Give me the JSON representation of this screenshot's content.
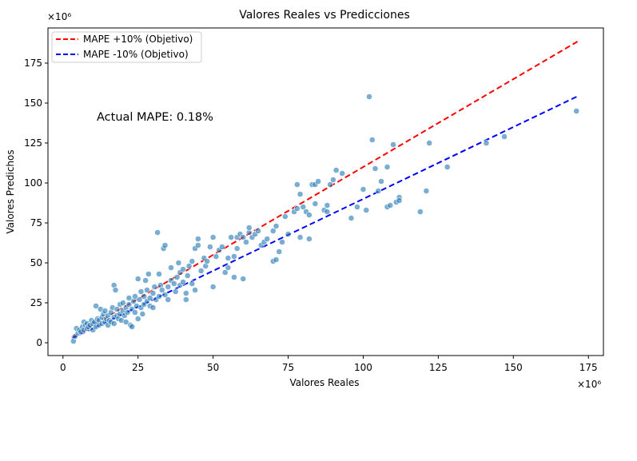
{
  "chart_data": {
    "type": "scatter",
    "title": "Valores Reales vs Predicciones",
    "xlabel": "Valores Reales",
    "ylabel": "Valores Predichos",
    "x_scale_label": "×10⁶",
    "y_scale_label": "×10⁶",
    "xlim": [
      -5,
      180
    ],
    "ylim": [
      -8,
      197
    ],
    "xticks": [
      0,
      25,
      50,
      75,
      100,
      125,
      150,
      175
    ],
    "yticks": [
      0,
      25,
      50,
      75,
      100,
      125,
      150,
      175
    ],
    "legend_position": "top-left",
    "annotation": "Actual MAPE: 0.18%",
    "point_color": "#1f77b4",
    "lines": [
      {
        "name": "MAPE +10% (Objetivo)",
        "color": "#ff0000",
        "x": [
          3,
          172
        ],
        "y": [
          3.3,
          189.2
        ]
      },
      {
        "name": "MAPE -10% (Objetivo)",
        "color": "#0000ff",
        "x": [
          3,
          172
        ],
        "y": [
          2.7,
          154.8
        ]
      }
    ],
    "points": [
      [
        3.5,
        1
      ],
      [
        4,
        4
      ],
      [
        4.5,
        9
      ],
      [
        5,
        6
      ],
      [
        5.5,
        8
      ],
      [
        6,
        7
      ],
      [
        6.5,
        10
      ],
      [
        7,
        13
      ],
      [
        7,
        8
      ],
      [
        7.5,
        11
      ],
      [
        8,
        9
      ],
      [
        8,
        12
      ],
      [
        8.5,
        10
      ],
      [
        9,
        11
      ],
      [
        9.5,
        14
      ],
      [
        10,
        12
      ],
      [
        10,
        8
      ],
      [
        10.5,
        13
      ],
      [
        11,
        10
      ],
      [
        11,
        23
      ],
      [
        11.5,
        15
      ],
      [
        12,
        14
      ],
      [
        12,
        11
      ],
      [
        12.5,
        21
      ],
      [
        13,
        16
      ],
      [
        13,
        12
      ],
      [
        13.5,
        18
      ],
      [
        14,
        13
      ],
      [
        14,
        20
      ],
      [
        14.5,
        15
      ],
      [
        15,
        17
      ],
      [
        15,
        11
      ],
      [
        15.5,
        14
      ],
      [
        16,
        19
      ],
      [
        16,
        13
      ],
      [
        16.5,
        22
      ],
      [
        17,
        16
      ],
      [
        17,
        12
      ],
      [
        17,
        36
      ],
      [
        17.5,
        33
      ],
      [
        18,
        17
      ],
      [
        18,
        21
      ],
      [
        18.5,
        15
      ],
      [
        19,
        24
      ],
      [
        19,
        18
      ],
      [
        19.5,
        14
      ],
      [
        20,
        20
      ],
      [
        20,
        25
      ],
      [
        20.5,
        17
      ],
      [
        21,
        22
      ],
      [
        21,
        13
      ],
      [
        21.5,
        19
      ],
      [
        22,
        28
      ],
      [
        22,
        24
      ],
      [
        22.5,
        11
      ],
      [
        23,
        10
      ],
      [
        23,
        21
      ],
      [
        23.5,
        26
      ],
      [
        24,
        19
      ],
      [
        24,
        29
      ],
      [
        24.5,
        23
      ],
      [
        25,
        15
      ],
      [
        25,
        40
      ],
      [
        25.5,
        27
      ],
      [
        26,
        22
      ],
      [
        26,
        32
      ],
      [
        26.5,
        18
      ],
      [
        27,
        29
      ],
      [
        27,
        24
      ],
      [
        27.5,
        39
      ],
      [
        28,
        26
      ],
      [
        28,
        33
      ],
      [
        28.5,
        43
      ],
      [
        29,
        23
      ],
      [
        29,
        28
      ],
      [
        30,
        31
      ],
      [
        30,
        22
      ],
      [
        30.5,
        35
      ],
      [
        31,
        27
      ],
      [
        31.5,
        69
      ],
      [
        32,
        29
      ],
      [
        32,
        43
      ],
      [
        32.5,
        36
      ],
      [
        33,
        33
      ],
      [
        33.5,
        59
      ],
      [
        34,
        30
      ],
      [
        34,
        61
      ],
      [
        35,
        35
      ],
      [
        35,
        27
      ],
      [
        36,
        39
      ],
      [
        36,
        47
      ],
      [
        37,
        37
      ],
      [
        37.5,
        32
      ],
      [
        38,
        41
      ],
      [
        38.5,
        50
      ],
      [
        39,
        44
      ],
      [
        39,
        36
      ],
      [
        40,
        46
      ],
      [
        40,
        38
      ],
      [
        41,
        27
      ],
      [
        41,
        31
      ],
      [
        41.5,
        42
      ],
      [
        42,
        48
      ],
      [
        43,
        51
      ],
      [
        43,
        37
      ],
      [
        44,
        33
      ],
      [
        44,
        59
      ],
      [
        45,
        61
      ],
      [
        45,
        65
      ],
      [
        46,
        45
      ],
      [
        47,
        53
      ],
      [
        47.5,
        48
      ],
      [
        48,
        51
      ],
      [
        49,
        60
      ],
      [
        50,
        66
      ],
      [
        50,
        35
      ],
      [
        51,
        54
      ],
      [
        52,
        58
      ],
      [
        53,
        60
      ],
      [
        54,
        44
      ],
      [
        55,
        47
      ],
      [
        55,
        53
      ],
      [
        56,
        66
      ],
      [
        57,
        54
      ],
      [
        57,
        41
      ],
      [
        58,
        59
      ],
      [
        58,
        66
      ],
      [
        59,
        68
      ],
      [
        60,
        66
      ],
      [
        60,
        40
      ],
      [
        61,
        63
      ],
      [
        62,
        69
      ],
      [
        62,
        72
      ],
      [
        63,
        66
      ],
      [
        64,
        68
      ],
      [
        65,
        70
      ],
      [
        66,
        61
      ],
      [
        67,
        63
      ],
      [
        68,
        65
      ],
      [
        70,
        70
      ],
      [
        70,
        51
      ],
      [
        71,
        52
      ],
      [
        71,
        73
      ],
      [
        72,
        57
      ],
      [
        73,
        63
      ],
      [
        74,
        79
      ],
      [
        75,
        68
      ],
      [
        77,
        82
      ],
      [
        78,
        84
      ],
      [
        78,
        99
      ],
      [
        79,
        93
      ],
      [
        79,
        66
      ],
      [
        80,
        85
      ],
      [
        81,
        82
      ],
      [
        82,
        80
      ],
      [
        82,
        65
      ],
      [
        83,
        99
      ],
      [
        84,
        87
      ],
      [
        84,
        99
      ],
      [
        85,
        101
      ],
      [
        87,
        83
      ],
      [
        88,
        86
      ],
      [
        88,
        82
      ],
      [
        89,
        99
      ],
      [
        90,
        102
      ],
      [
        91,
        108
      ],
      [
        93,
        106
      ],
      [
        96,
        78
      ],
      [
        98,
        85
      ],
      [
        100,
        96
      ],
      [
        101,
        83
      ],
      [
        102,
        154
      ],
      [
        103,
        127
      ],
      [
        104,
        109
      ],
      [
        105,
        95
      ],
      [
        106,
        101
      ],
      [
        108,
        110
      ],
      [
        108,
        85
      ],
      [
        109,
        86
      ],
      [
        110,
        124
      ],
      [
        111,
        88
      ],
      [
        112,
        91
      ],
      [
        112,
        89
      ],
      [
        119,
        82
      ],
      [
        121,
        95
      ],
      [
        122,
        125
      ],
      [
        128,
        110
      ],
      [
        141,
        125
      ],
      [
        147,
        129
      ],
      [
        171,
        145
      ]
    ]
  }
}
